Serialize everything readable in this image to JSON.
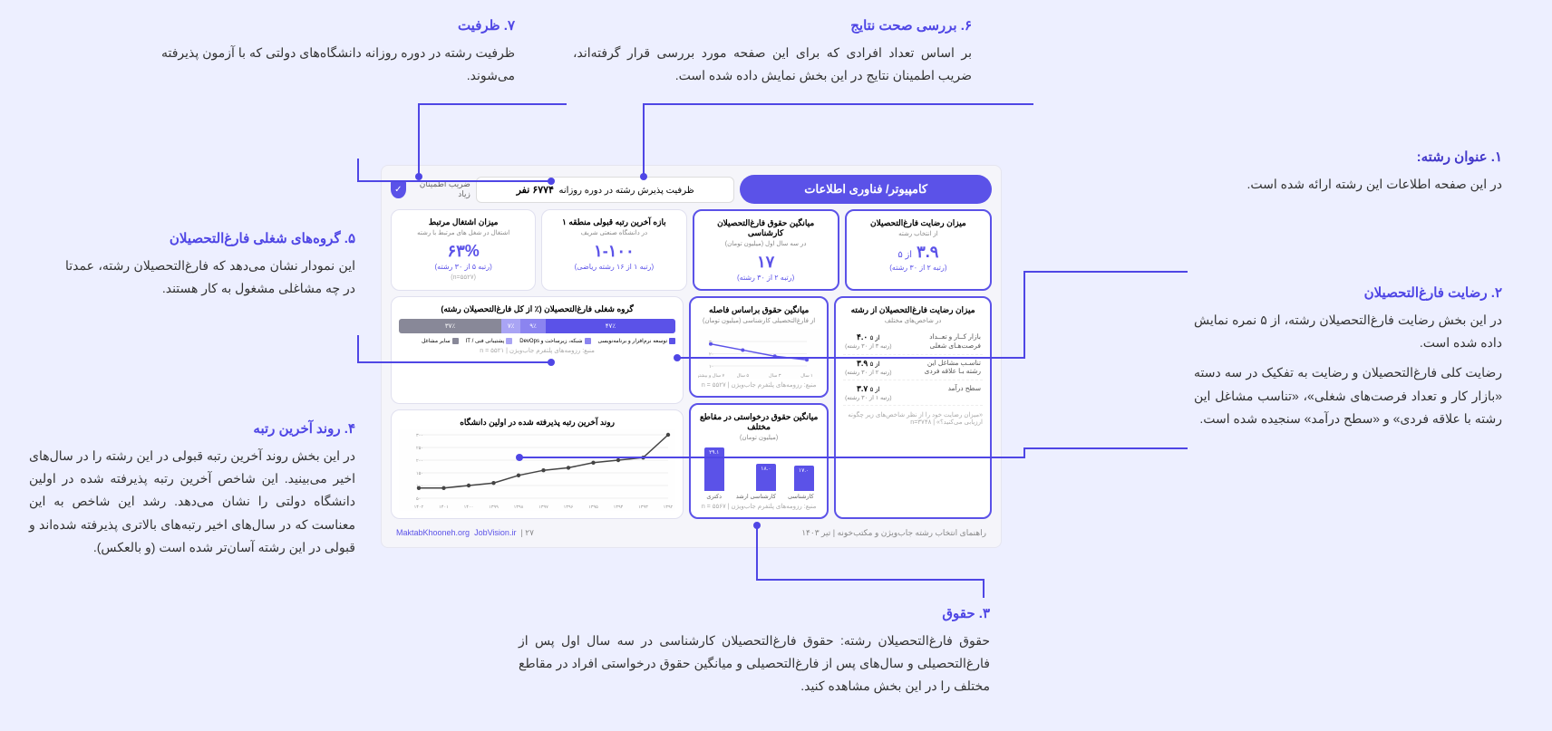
{
  "annotations": {
    "a1": {
      "title": "۱. عنوان رشته:",
      "body": "در این صفحه اطلاعات این رشته ارائه شده است."
    },
    "a2": {
      "title": "۲. رضایت فارغ‌التحصیلان",
      "body": "در این بخش رضایت فارغ‌التحصیلان رشته، از ۵ نمره نمایش داده شده است.",
      "body2": "رضایت کلی فارغ‌التحصیلان و رضایت به تفکیک در سه دسته «بازار کار و تعداد فرصت‌های شغلی»، «تناسب مشاغل این رشته با علاقه فردی» و «سطح درآمد» سنجیده شده است."
    },
    "a3": {
      "title": "۳. حقوق",
      "body": "حقوق فارغ‌التحصیلان رشته: حقوق فارغ‌التحصیلان کارشناسی در سه سال اول پس از فارغ‌التحصیلی و سال‌های پس از فارغ‌التحصیلی و میانگین حقوق درخواستی افراد در مقاطع مختلف را در این بخش مشاهده کنید."
    },
    "a4": {
      "title": "۴. روند آخرین رتبه",
      "body": "در این بخش روند آخرین رتبه قبولی در این رشته را در سال‌های اخیر می‌بینید. این شاخص آخرین رتبه پذیرفته شده در اولین دانشگاه دولتی را نشان می‌دهد. رشد این شاخص به این معناست که در سال‌های اخیر رتبه‌های بالاتری پذیرفته شده‌اند و قبولی در این رشته آسان‌تر شده است (و بالعکس)."
    },
    "a5": {
      "title": "۵. گروه‌های شغلی فارغ‌التحصیلان",
      "body": "این نمودار نشان می‌دهد که فارغ‌التحصیلان رشته، عمدتا در چه مشاغلی مشغول به کار هستند."
    },
    "a6": {
      "title": "۶. بررسی صحت نتایج",
      "body": "بر اساس تعداد افرادی که برای این صفحه مورد بررسی قرار گرفته‌اند، ضریب اطمینان نتایج در این بخش نمایش داده شده است."
    },
    "a7": {
      "title": "۷. ظرفیت",
      "body": "ظرفیت رشته در دوره روزانه دانشگاه‌های دولتی که با آزمون پذیرفته می‌شوند."
    }
  },
  "dash": {
    "field_title": "کامپیوتر/ فناوری اطلاعات",
    "capacity_label": "ظرفیت پذیرش رشته در دوره روزانه",
    "capacity_value": "۶۷۷۴ نفر",
    "trust_label": "ضریب اطمینان زیاد",
    "cards": {
      "sat": {
        "title": "میزان رضایت فارغ‌التحصیلان",
        "sub": "از انتخاب رشته",
        "val": "۳.۹",
        "suffix": "از ۵",
        "rank": "(رتبه ۲ از ۳۰ رشته)"
      },
      "salary": {
        "title": "میانگین حقوق فارغ‌التحصیلان کارشناسی",
        "sub": "در سه سال اول (میلیون تومان)",
        "val": "۱۷",
        "rank": "(رتبه ۲ از ۳۰ رشته)"
      },
      "rank": {
        "title": "بازه آخرین رتبه قبولی منطقه ۱",
        "sub": "در دانشگاه صنعتی شریف",
        "val": "۱-۱۰۰",
        "rank": "(رتبه ۱ از ۱۶ رشته ریاضی)"
      },
      "emp": {
        "title": "میزان اشتغال مرتبط",
        "sub": "اشتغال در شغل های مرتبط با رشته",
        "val": "۶۳%",
        "rank": "(رتبه ۵ از ۳۰ رشته)",
        "foot": "(n=۵۵۲۷)"
      }
    },
    "sat_detail": {
      "title": "میزان رضایت فارغ‌التحصیلان از رشته",
      "sub": "در شاخص‌های مختلف",
      "rows": [
        {
          "label": "بازار کــار و تعــداد فرصت‌هـای شغلی",
          "val": "۴.۰",
          "suffix": "از ۵",
          "rank": "(رتبه ۳ از ۳۰ رشته)"
        },
        {
          "label": "تناسـب مشاغل این رشته بـا علاقه فردی",
          "val": "۳.۹",
          "suffix": "از ۵",
          "rank": "(رتبه ۲ از ۳۰ رشته)"
        },
        {
          "label": "سطح درآمد",
          "val": "۳.۷",
          "suffix": "از ۵",
          "rank": "(رتبه ۱ از ۳۰ رشته)"
        }
      ],
      "foot": "«‫میزان رضایت خود را از نظر شاخص‌های زیر چگونه ارزیابی می‌کنید؟» | ۳۷۴۸=n"
    },
    "salary_time": {
      "title": "میانگین حقوق براساس فاصله",
      "sub": "از فارغ‌التحصیلی کارشناسی (میلیون تومان)",
      "x": [
        "۱ سال",
        "۳ سال",
        "۵ سال",
        "۷ سال و بیشتر"
      ],
      "y": [
        15,
        18,
        23,
        28
      ],
      "yticks": [
        "۱۰",
        "۲۰",
        "۳۰"
      ],
      "foot": "منبع: رزومه‌های پلتفرم جاب‌ویژن | ۵۵۲۷ = n"
    },
    "salary_level": {
      "title": "میانگین حقوق درخواستی در مقاطع مختلف",
      "sub": "(میلیون تومان)",
      "bars": [
        {
          "label": "کارشناسی",
          "val": 17,
          "txt": "۱۷.۰"
        },
        {
          "label": "کارشناسی ارشد",
          "val": 18,
          "txt": "۱۸.۰"
        },
        {
          "label": "دکتری",
          "val": 29,
          "txt": "۲۹.۱"
        }
      ],
      "foot": "منبع: رزومه‌های پلتفرم جاب‌ویژن | ۵۵۶۷ = n"
    },
    "jobs": {
      "title": "گروه شغلی فارغ‌التحصیلان (٪ از کل فارغ‌التحصیلان رشته)",
      "segments": [
        {
          "pct": 47,
          "txt": "۴۷٪",
          "color": "#5b52e8"
        },
        {
          "pct": 9,
          "txt": "۹٪",
          "color": "#8b84f0"
        },
        {
          "pct": 7,
          "txt": "۷٪",
          "color": "#a9a4f4"
        },
        {
          "pct": 37,
          "txt": "۳۷٪",
          "color": "#888898"
        }
      ],
      "legend": [
        {
          "label": "توسعه نرم‌افزار و برنامه‌نویسی",
          "color": "#5b52e8"
        },
        {
          "label": "شبکه، زیرساخت و DevOps",
          "color": "#8b84f0"
        },
        {
          "label": "پشتیبانی فنی / IT",
          "color": "#a9a4f4"
        },
        {
          "label": "سایر مشاغل",
          "color": "#888898"
        }
      ],
      "foot": "منبع: رزومه‌های پلتفرم جاب‌ویژن | ۵۵۲۱ = n"
    },
    "trend": {
      "title": "روند آخرین رتبه پذیرفته شده در اولین دانشگاه",
      "x": [
        "۱۳۹۲",
        "۱۳۹۳",
        "۱۳۹۴",
        "۱۳۹۵",
        "۱۳۹۶",
        "۱۳۹۷",
        "۱۳۹۸",
        "۱۳۹۹",
        "۱۴۰۰",
        "۱۴۰۱",
        "۱۴۰۲"
      ],
      "y": [
        300,
        210,
        200,
        190,
        170,
        160,
        140,
        110,
        100,
        90,
        90
      ],
      "yticks": [
        "۵۰",
        "۱۰۰",
        "۱۵۰",
        "۲۰۰",
        "۲۵۰",
        "۳۰۰"
      ]
    },
    "footer": {
      "right": "راهنمای انتخاب رشته جاب‌ویژن و مکتب‌خونه | تیر ۱۴۰۳",
      "left_link1": "JobVision.ir",
      "left_link2": "MaktabKhooneh.org",
      "page": "۲۷"
    }
  },
  "colors": {
    "accent": "#4f46e5",
    "bg": "#edefff"
  }
}
